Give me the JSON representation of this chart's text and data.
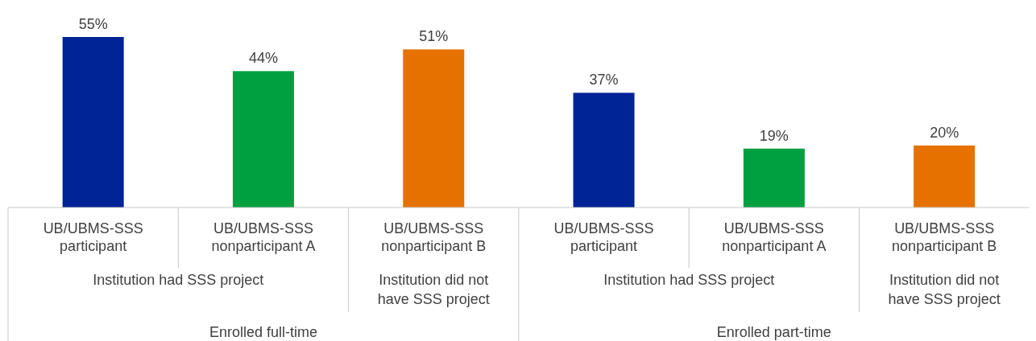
{
  "chart_data": {
    "type": "bar",
    "categories": [
      "UB/UBMS-SSS participant",
      "UB/UBMS-SSS nonparticipant A",
      "UB/UBMS-SSS nonparticipant B",
      "UB/UBMS-SSS participant",
      "UB/UBMS-SSS nonparticipant A",
      "UB/UBMS-SSS nonparticipant B"
    ],
    "values": [
      55,
      44,
      51,
      37,
      19,
      20
    ],
    "colors": [
      "#002395",
      "#00a040",
      "#e57200",
      "#002395",
      "#00a040",
      "#e57200"
    ],
    "value_labels": [
      "55%",
      "44%",
      "51%",
      "37%",
      "19%",
      "20%"
    ],
    "annotations": [
      "Institution had SSS project",
      "Institution did not have SSS project",
      "Institution had SSS project",
      "Institution did not have SSS project",
      "Enrolled full-time",
      "Enrolled part-time"
    ]
  }
}
